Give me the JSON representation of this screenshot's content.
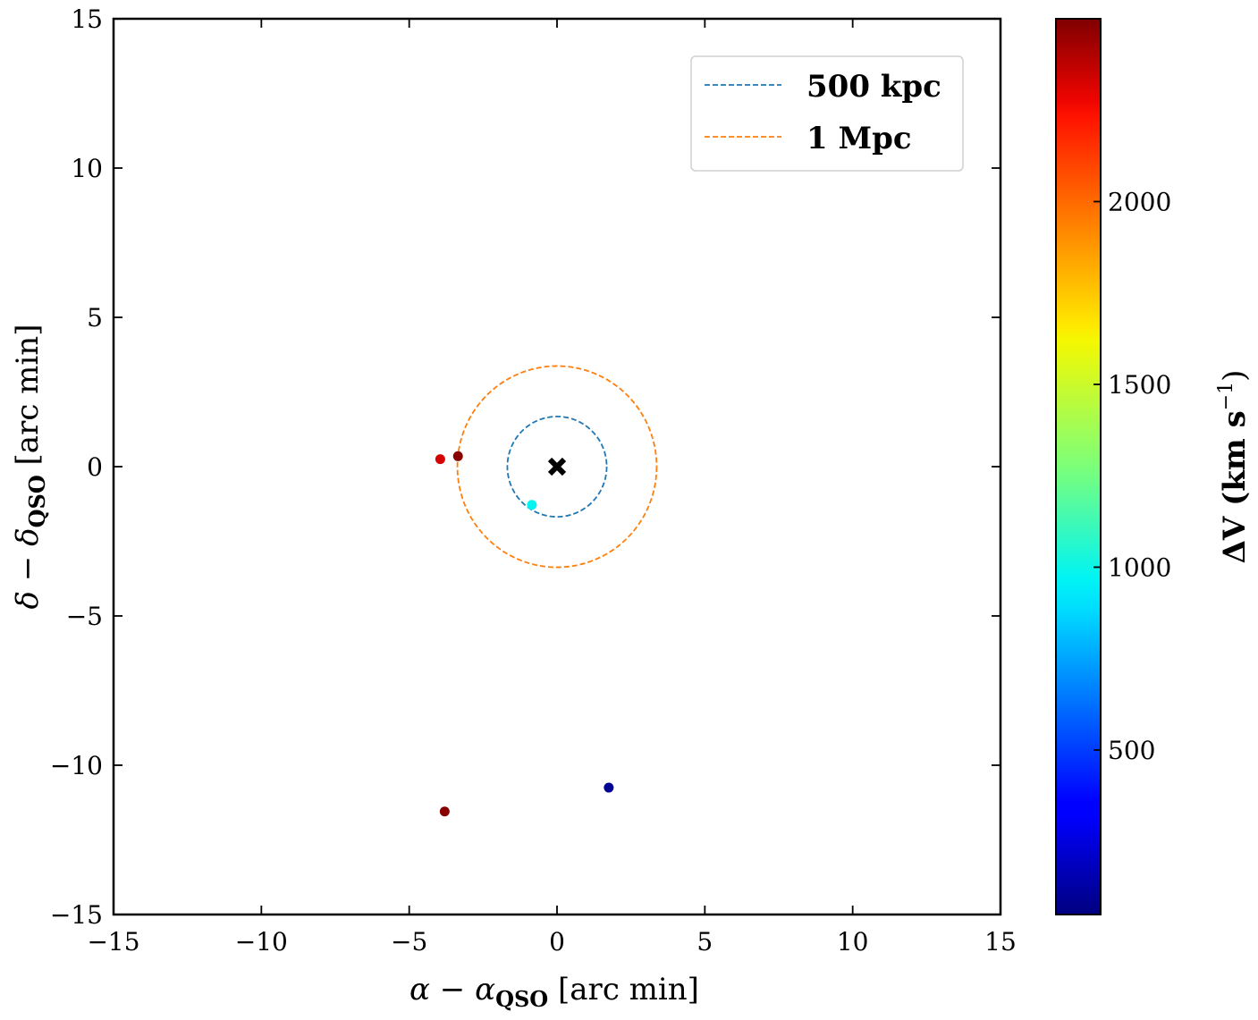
{
  "chart_data": {
    "type": "scatter",
    "xlim": [
      -15,
      15
    ],
    "ylim": [
      -15,
      15
    ],
    "x_ticks": [
      -15,
      -10,
      -5,
      0,
      5,
      10,
      15
    ],
    "y_ticks": [
      -15,
      -10,
      -5,
      0,
      5,
      10,
      15
    ],
    "x_tick_labels": [
      "−15",
      "−10",
      "−5",
      "0",
      "5",
      "10",
      "15"
    ],
    "y_tick_labels": [
      "−15",
      "−10",
      "−5",
      "0",
      "5",
      "10",
      "15"
    ],
    "xlabel": {
      "prefix": "α − α",
      "sub": "QSO",
      "suffix": " [arc min]"
    },
    "ylabel": {
      "prefix": "δ − δ",
      "sub": "QSO",
      "suffix": " [arc min]"
    },
    "grid": false,
    "legend_position": "top-right",
    "qso_marker": {
      "x": 0,
      "y": 0,
      "symbol": "x",
      "color": "#000000"
    },
    "circles": [
      {
        "name": "500 kpc",
        "radius": 1.68,
        "color": "#1f77b4",
        "style": "dashed"
      },
      {
        "name": "1 Mpc",
        "radius": 3.37,
        "color": "#ff7f0e",
        "style": "dashed"
      }
    ],
    "points": [
      {
        "x": -3.95,
        "y": 0.25,
        "dv": 2330
      },
      {
        "x": -3.35,
        "y": 0.35,
        "dv": 2480
      },
      {
        "x": -0.85,
        "y": -1.28,
        "dv": 980
      },
      {
        "x": 1.75,
        "y": -10.75,
        "dv": 90
      },
      {
        "x": -3.8,
        "y": -11.55,
        "dv": 2480
      }
    ],
    "colorbar": {
      "label_main": "ΔV (km s",
      "label_sup": "−1",
      "label_end": ")",
      "min": 50,
      "max": 2500,
      "ticks": [
        500,
        1000,
        1500,
        2000
      ],
      "tick_labels": [
        "500",
        "1000",
        "1500",
        "2000"
      ],
      "colormap": "jet"
    }
  }
}
